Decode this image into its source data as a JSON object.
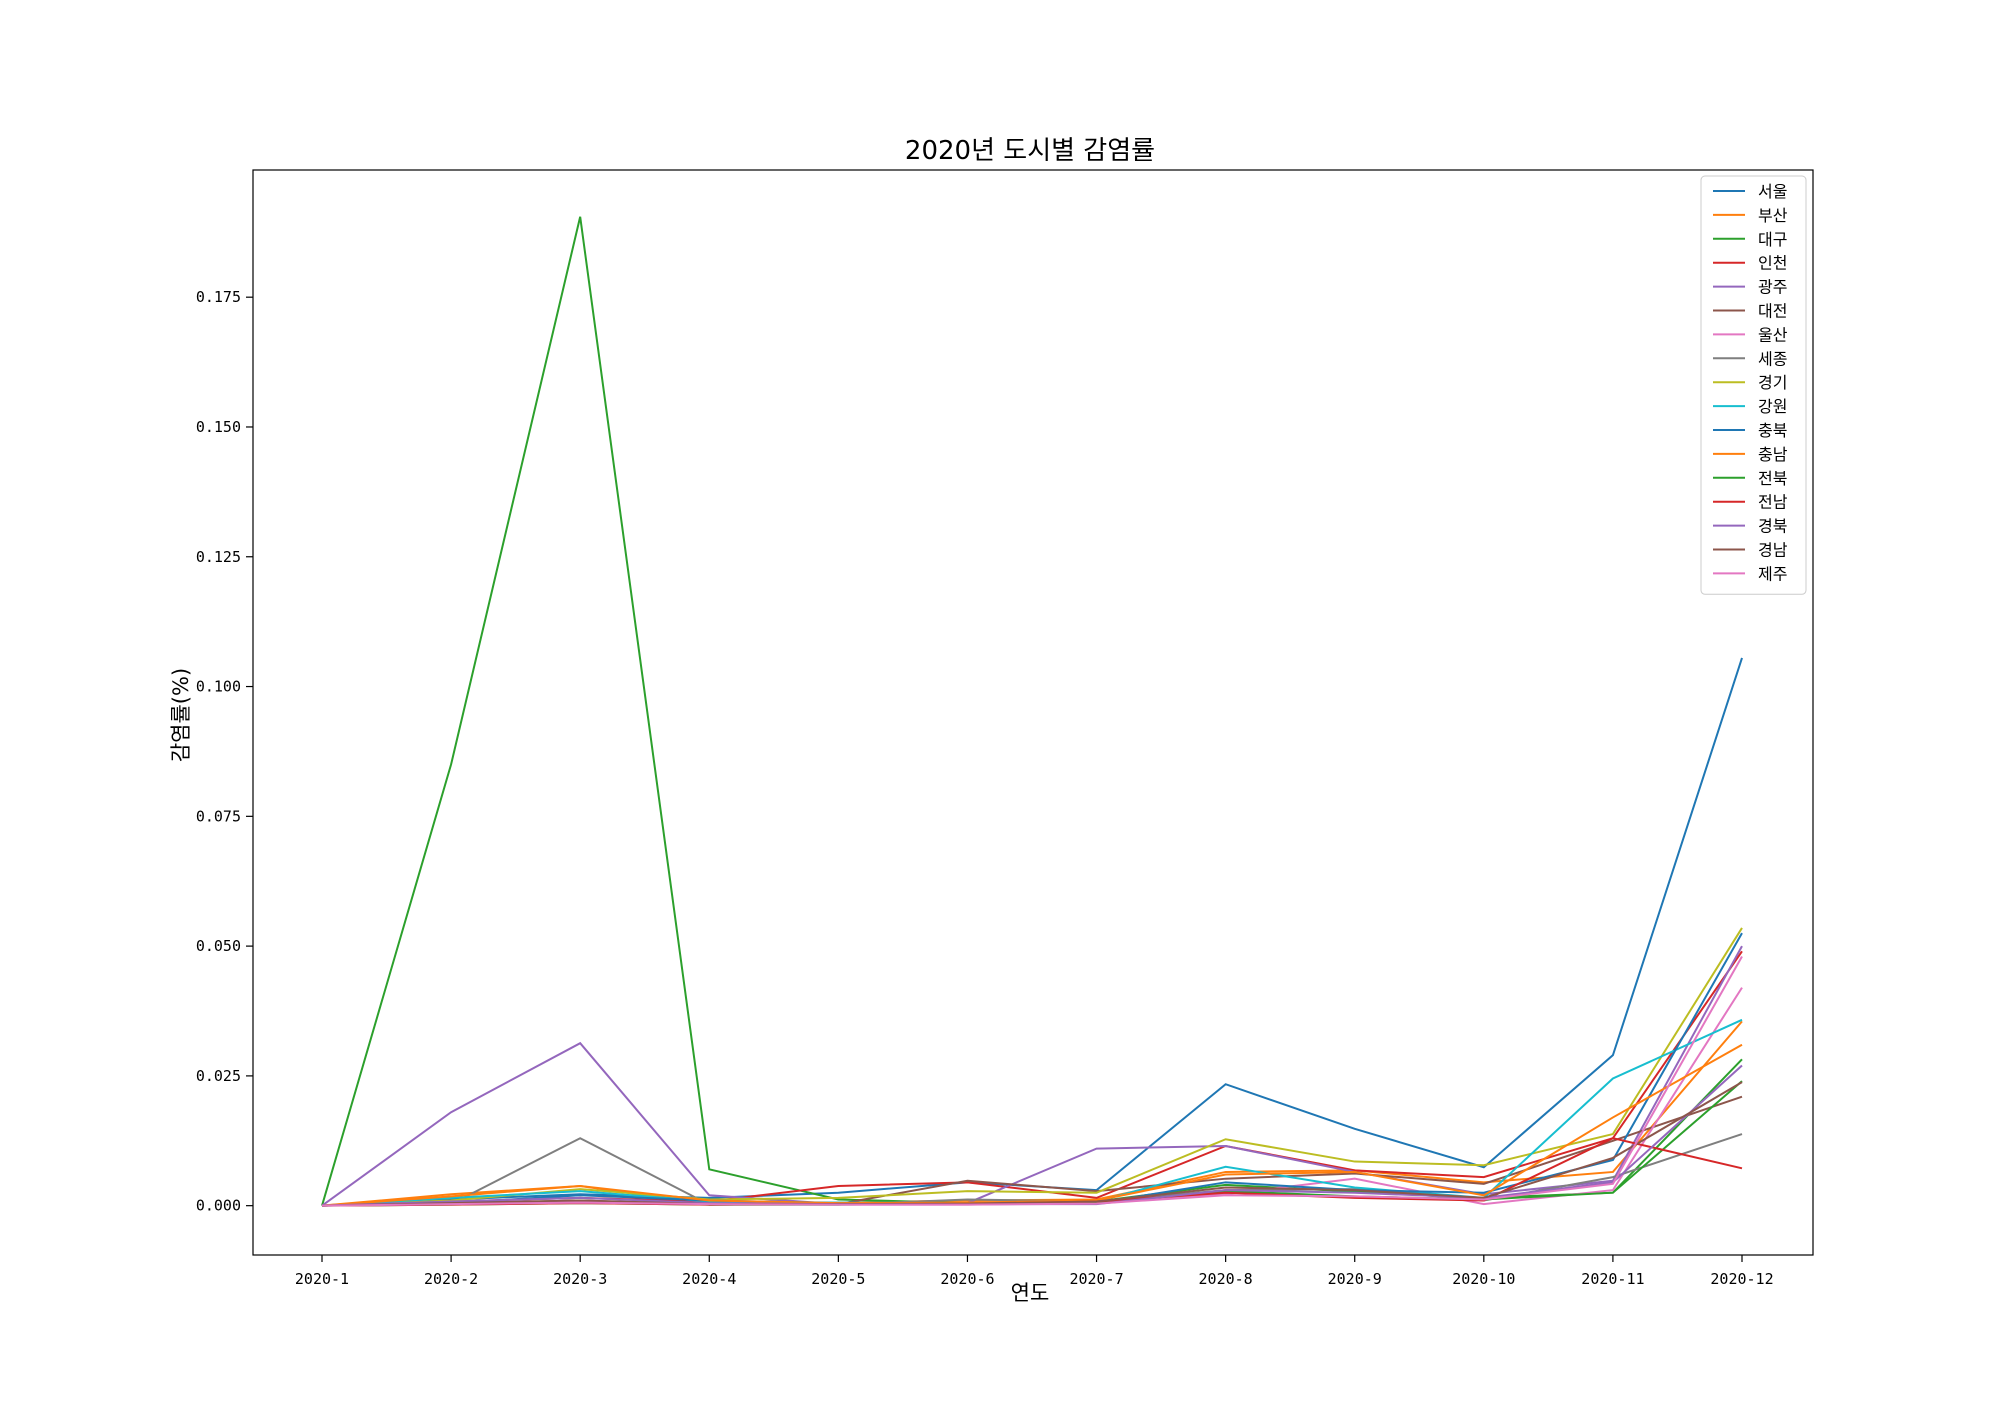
{
  "chart_data": {
    "type": "line",
    "title": "2020년 도시별 감염률",
    "xlabel": "연도",
    "ylabel": "감염률(%)",
    "categories": [
      "2020-1",
      "2020-2",
      "2020-3",
      "2020-4",
      "2020-5",
      "2020-6",
      "2020-7",
      "2020-8",
      "2020-9",
      "2020-10",
      "2020-11",
      "2020-12"
    ],
    "ylim": [
      -0.0095,
      0.1995
    ],
    "yticks": [
      0.0,
      0.025,
      0.05,
      0.075,
      0.1,
      0.125,
      0.15,
      0.175
    ],
    "ytick_labels": [
      "0.000",
      "0.025",
      "0.050",
      "0.075",
      "0.100",
      "0.125",
      "0.150",
      "0.175"
    ],
    "grid": false,
    "legend_position": "upper right",
    "series": [
      {
        "name": "서울",
        "color": "#1f77b4",
        "values": [
          0,
          0.0012,
          0.0022,
          0.0015,
          0.0025,
          0.0045,
          0.003,
          0.0234,
          0.0148,
          0.0074,
          0.029,
          0.1055
        ]
      },
      {
        "name": "부산",
        "color": "#ff7f0e",
        "values": [
          0,
          0.0022,
          0.0038,
          0.0002,
          0.0006,
          0.001,
          0.0012,
          0.0065,
          0.0068,
          0.0045,
          0.0065,
          0.0355
        ]
      },
      {
        "name": "대구",
        "color": "#2ca02c",
        "values": [
          0,
          0.085,
          0.1905,
          0.007,
          0.0012,
          0.0005,
          0.0008,
          0.004,
          0.0027,
          0.0015,
          0.0025,
          0.0282
        ]
      },
      {
        "name": "인천",
        "color": "#d62728",
        "values": [
          0,
          0.0008,
          0.0015,
          0.0008,
          0.0038,
          0.0045,
          0.0015,
          0.0115,
          0.0068,
          0.0055,
          0.013,
          0.049
        ]
      },
      {
        "name": "광주",
        "color": "#9467bd",
        "values": [
          0,
          0.018,
          0.0313,
          0.002,
          0.0003,
          0.0005,
          0.011,
          0.0115,
          0.0065,
          0.0022,
          0.0048,
          0.05
        ]
      },
      {
        "name": "대전",
        "color": "#8c564b",
        "values": [
          0,
          0.0005,
          0.001,
          0.0002,
          0.0003,
          0.0048,
          0.0028,
          0.0052,
          0.0062,
          0.0042,
          0.0125,
          0.021
        ]
      },
      {
        "name": "울산",
        "color": "#e377c2",
        "values": [
          0,
          0.0005,
          0.0008,
          0.0003,
          0.0002,
          0.0002,
          0.0005,
          0.0022,
          0.0052,
          0.0003,
          0.003,
          0.042
        ]
      },
      {
        "name": "세종",
        "color": "#7f7f7f",
        "values": [
          0,
          0.0003,
          0.013,
          0.0002,
          0.0002,
          0.0012,
          0.0008,
          0.003,
          0.0032,
          0.001,
          0.0055,
          0.0138
        ]
      },
      {
        "name": "경기",
        "color": "#bcbd22",
        "values": [
          0,
          0.001,
          0.0032,
          0.0012,
          0.0015,
          0.0028,
          0.0025,
          0.0128,
          0.0085,
          0.0078,
          0.0138,
          0.0535
        ]
      },
      {
        "name": "강원",
        "color": "#17becf",
        "values": [
          0,
          0.0015,
          0.0028,
          0.0008,
          0.0006,
          0.0005,
          0.0008,
          0.0075,
          0.0035,
          0.0015,
          0.0245,
          0.0358
        ]
      },
      {
        "name": "충북",
        "color": "#1f77b4",
        "values": [
          0,
          0.0005,
          0.002,
          0.001,
          0.0005,
          0.0004,
          0.0005,
          0.0045,
          0.003,
          0.0025,
          0.0088,
          0.0525
        ]
      },
      {
        "name": "충남",
        "color": "#ff7f0e",
        "values": [
          0,
          0.0018,
          0.0038,
          0.001,
          0.0005,
          0.0006,
          0.001,
          0.006,
          0.0065,
          0.002,
          0.017,
          0.031
        ]
      },
      {
        "name": "전북",
        "color": "#2ca02c",
        "values": [
          0,
          0.0002,
          0.0005,
          0.0002,
          0.0002,
          0.0003,
          0.0005,
          0.0028,
          0.0018,
          0.0012,
          0.0025,
          0.024
        ]
      },
      {
        "name": "전남",
        "color": "#d62728",
        "values": [
          0,
          0.0002,
          0.0005,
          0.0002,
          0.0003,
          0.0003,
          0.0008,
          0.0025,
          0.0015,
          0.001,
          0.013,
          0.0072
        ]
      },
      {
        "name": "경북",
        "color": "#9467bd",
        "values": [
          0,
          0.0008,
          0.0015,
          0.0005,
          0.0003,
          0.0003,
          0.0003,
          0.003,
          0.0025,
          0.0015,
          0.0045,
          0.027
        ]
      },
      {
        "name": "경남",
        "color": "#8c564b",
        "values": [
          0,
          0.0005,
          0.001,
          0.0003,
          0.0003,
          0.0004,
          0.0008,
          0.0035,
          0.003,
          0.0015,
          0.0092,
          0.0238
        ]
      },
      {
        "name": "제주",
        "color": "#e377c2",
        "values": [
          0,
          0.0003,
          0.0006,
          0.0003,
          0.0002,
          0.0002,
          0.0004,
          0.002,
          0.0018,
          0.0012,
          0.0042,
          0.048
        ]
      }
    ]
  }
}
